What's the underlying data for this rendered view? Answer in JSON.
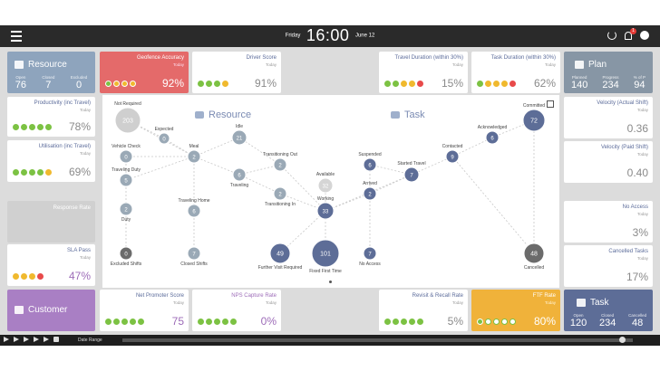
{
  "topbar": {
    "day": "Friday",
    "time": "16:00",
    "date": "June 12",
    "bell_count": "1"
  },
  "resource_header": {
    "title": "Resource",
    "color": "#8ea4bd",
    "stats": [
      {
        "label": "Open",
        "value": "76"
      },
      {
        "label": "Closed",
        "value": "7"
      },
      {
        "label": "Excluded",
        "value": "0"
      }
    ]
  },
  "plan_header": {
    "title": "Plan",
    "color": "#8796a5",
    "stats": [
      {
        "label": "Planned",
        "value": "140"
      },
      {
        "label": "Progress",
        "value": "234"
      },
      {
        "label": "% of P",
        "value": "94"
      }
    ]
  },
  "customer_header": {
    "title": "Customer",
    "color": "#a97fc4"
  },
  "task_header": {
    "title": "Task",
    "color": "#5d6d97",
    "stats": [
      {
        "label": "Open",
        "value": "120"
      },
      {
        "label": "Closed",
        "value": "234"
      },
      {
        "label": "Cancelled",
        "value": "48"
      }
    ]
  },
  "tiles": {
    "geofence": {
      "name": "Geofence Accuracy",
      "sub": "Today",
      "value": "92%",
      "bg": "#e46a6a"
    },
    "driver": {
      "name": "Driver Score",
      "sub": "Today",
      "value": "91%"
    },
    "travel_dur": {
      "name": "Travel Duration (within 30%)",
      "sub": "Today",
      "value": "15%"
    },
    "task_dur": {
      "name": "Task Duration (within 30%)",
      "sub": "Today",
      "value": "62%"
    },
    "productivity": {
      "name": "Productivity (inc Travel)",
      "sub": "Today",
      "value": "78%"
    },
    "utilisation": {
      "name": "Utilisation (inc Travel)",
      "sub": "Today",
      "value": "69%"
    },
    "response": {
      "name": "Response Rate"
    },
    "sla": {
      "name": "SLA Pass",
      "sub": "Today",
      "value": "47%"
    },
    "velocity_actual": {
      "name": "Velocity (Actual Shift)",
      "sub": "Today",
      "value": "0.36"
    },
    "velocity_paid": {
      "name": "Velocity (Paid Shift)",
      "sub": "Today",
      "value": "0.40"
    },
    "no_access": {
      "name": "No Access",
      "sub": "Today",
      "value": "3%"
    },
    "cancelled": {
      "name": "Cancelled Tasks",
      "sub": "Today",
      "value": "17%"
    },
    "nps": {
      "name": "Net Promoter Score",
      "sub": "Today",
      "value": "75"
    },
    "nps_capture": {
      "name": "NPS Capture Rate",
      "sub": "Today",
      "value": "0%"
    },
    "revisit": {
      "name": "Revisit & Recall Rate",
      "sub": "Today",
      "value": "5%"
    },
    "ftf": {
      "name": "FTF Rate",
      "sub": "Today",
      "value": "80%",
      "bg": "#f0b23a"
    }
  },
  "center": {
    "resource_title": "Resource",
    "task_title": "Task",
    "nodes": [
      {
        "label": "Not Required",
        "value": "203"
      },
      {
        "label": "Expected",
        "value": "0"
      },
      {
        "label": "Vehicle Check",
        "value": "0"
      },
      {
        "label": "Meal",
        "value": "2"
      },
      {
        "label": "Idle",
        "value": "21"
      },
      {
        "label": "Traveling Duty",
        "value": "5"
      },
      {
        "label": "Traveling",
        "value": "6"
      },
      {
        "label": "Transitioning Out",
        "value": "2"
      },
      {
        "label": "Transitioning In",
        "value": "2"
      },
      {
        "label": "Duty",
        "value": "2"
      },
      {
        "label": "Traveling Home",
        "value": "6"
      },
      {
        "label": "Excluded Shifts",
        "value": "0"
      },
      {
        "label": "Closed Shifts",
        "value": "7"
      },
      {
        "label": "Available",
        "value": "32"
      },
      {
        "label": "Working",
        "value": "33"
      },
      {
        "label": "Further Visit Required",
        "value": "49"
      },
      {
        "label": "Fixed First Time",
        "value": "101"
      },
      {
        "label": "Suspended",
        "value": "6"
      },
      {
        "label": "Arrived",
        "value": "2"
      },
      {
        "label": "No Access",
        "value": "7"
      },
      {
        "label": "Started Travel",
        "value": "7"
      },
      {
        "label": "Contacted",
        "value": "9"
      },
      {
        "label": "Acknowledged",
        "value": "6"
      },
      {
        "label": "Committed",
        "value": "72"
      },
      {
        "label": "Cancelled",
        "value": "48"
      }
    ]
  },
  "footer": {
    "range_label": "Date Range"
  }
}
